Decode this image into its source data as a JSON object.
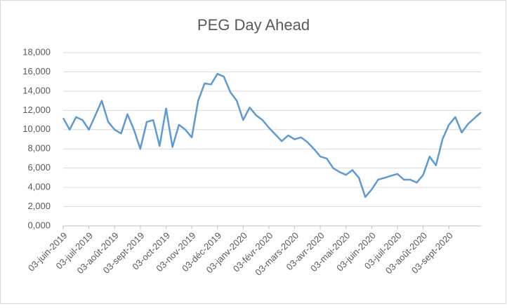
{
  "chart_data": {
    "type": "line",
    "title": "PEG Day Ahead",
    "categories": [
      "03-juin-2019",
      null,
      null,
      null,
      "03-juil-2019",
      null,
      null,
      null,
      "03-août-2019",
      null,
      null,
      null,
      "03-sept-2019",
      null,
      null,
      null,
      "03-oct-2019",
      null,
      null,
      null,
      "03-nov-2019",
      null,
      null,
      null,
      "03-déc-2019",
      null,
      null,
      null,
      "03-janv-2020",
      null,
      null,
      null,
      "03-févr-2020",
      null,
      null,
      null,
      "03-mars-2020",
      null,
      null,
      null,
      "03-avr-2020",
      null,
      null,
      null,
      "03-mai-2020",
      null,
      null,
      null,
      "03-juin-2020",
      null,
      null,
      null,
      "03-juil-2020",
      null,
      null,
      null,
      "03-août-2020",
      null,
      null,
      null,
      "03-sept-2020",
      null,
      null,
      null,
      null,
      null
    ],
    "values": [
      11.2,
      10.0,
      11.3,
      11.0,
      10.0,
      11.5,
      13.0,
      10.8,
      10.0,
      9.6,
      11.6,
      10.0,
      8.0,
      10.8,
      11.0,
      8.3,
      12.2,
      8.2,
      10.5,
      10.0,
      9.2,
      13.0,
      14.8,
      14.7,
      15.8,
      15.5,
      13.9,
      13.0,
      11.0,
      12.3,
      11.5,
      11.0,
      10.2,
      9.5,
      8.8,
      9.4,
      9.0,
      9.2,
      8.7,
      8.0,
      7.2,
      7.0,
      6.0,
      5.6,
      5.3,
      5.8,
      5.0,
      3.0,
      3.8,
      4.8,
      5.0,
      5.2,
      5.4,
      4.8,
      4.8,
      4.5,
      5.3,
      7.2,
      6.3,
      9.0,
      10.5,
      11.3,
      9.7,
      10.6,
      11.2,
      11.8
    ],
    "color": "#5b9bd5",
    "ylim": [
      0,
      18
    ],
    "yticks": [
      {
        "value": 0,
        "label": "0,000"
      },
      {
        "value": 2,
        "label": "2,000"
      },
      {
        "value": 4,
        "label": "4,000"
      },
      {
        "value": 6,
        "label": "6,000"
      },
      {
        "value": 8,
        "label": "8,000"
      },
      {
        "value": 10,
        "label": "10,000"
      },
      {
        "value": 12,
        "label": "12,000"
      },
      {
        "value": 14,
        "label": "14,000"
      },
      {
        "value": 16,
        "label": "16,000"
      },
      {
        "value": 18,
        "label": "18,000"
      }
    ],
    "grid": true
  }
}
